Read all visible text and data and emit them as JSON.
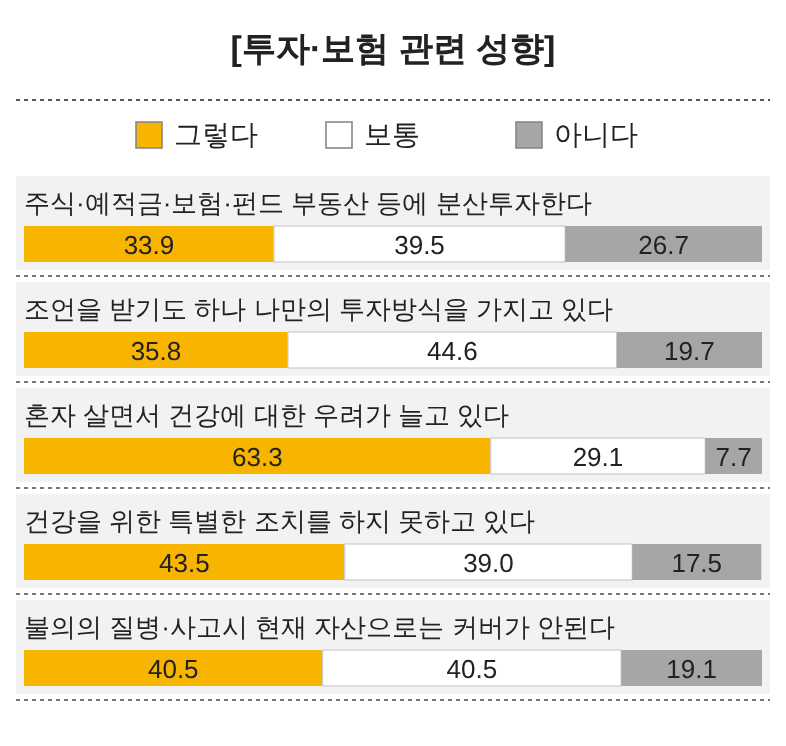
{
  "chart_data": {
    "type": "bar",
    "orientation": "horizontal",
    "stacked": true,
    "title": "[투자·보험 관련 성향]",
    "categories": [
      "주식·예적금·보험·펀드 부동산 등에 분산투자한다",
      "조언을 받기도 하나 나만의 투자방식을 가지고 있다",
      "혼자 살면서 건강에 대한 우려가 늘고 있다",
      "건강을 위한 특별한 조치를 하지 못하고 있다",
      "불의의 질병·사고시 현재 자산으로는 커버가 안된다"
    ],
    "series": [
      {
        "name": "그렇다",
        "color": "#f7b500",
        "values": [
          33.9,
          35.8,
          63.3,
          43.5,
          40.5
        ],
        "value_labels": [
          "33.9",
          "35.8",
          "63.3",
          "43.5",
          "40.5"
        ]
      },
      {
        "name": "보통",
        "color": "#ffffff",
        "values": [
          39.5,
          44.6,
          29.1,
          39.0,
          40.5
        ],
        "value_labels": [
          "39.5",
          "44.6",
          "29.1",
          "39.0",
          "40.5"
        ]
      },
      {
        "name": "아니다",
        "color": "#a6a6a6",
        "values": [
          26.7,
          19.7,
          7.7,
          17.5,
          19.1
        ],
        "value_labels": [
          "26.7",
          "19.7",
          "7.7",
          "17.5",
          "19.1"
        ]
      }
    ],
    "legend": "top"
  }
}
